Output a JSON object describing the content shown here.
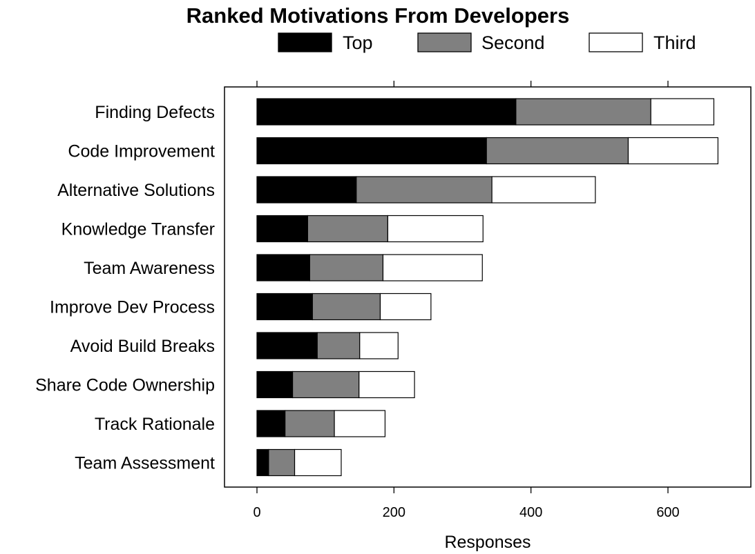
{
  "chart_data": {
    "type": "bar",
    "orientation": "horizontal",
    "stacked": true,
    "title": "Ranked Motivations From Developers",
    "xlabel": "Responses",
    "ylabel": "",
    "xlim": [
      -48,
      720
    ],
    "xticks": [
      "0",
      "200",
      "400",
      "600"
    ],
    "xtick_values": [
      0,
      200,
      400,
      600
    ],
    "grid": false,
    "legend_position": "top",
    "categories": [
      "Finding Defects",
      "Code Improvement",
      "Alternative Solutions",
      "Knowledge Transfer",
      "Team Awareness",
      "Improve Dev Process",
      "Avoid Build Breaks",
      "Share Code Ownership",
      "Track Rationale",
      "Team Assessment"
    ],
    "series": [
      {
        "name": "Top",
        "color": "#000000",
        "values": [
          378,
          335,
          145,
          74,
          77,
          81,
          88,
          52,
          41,
          17
        ]
      },
      {
        "name": "Second",
        "color": "#808080",
        "values": [
          197,
          207,
          198,
          117,
          107,
          99,
          62,
          97,
          72,
          38
        ]
      },
      {
        "name": "Third",
        "color": "#ffffff",
        "values": [
          92,
          131,
          151,
          139,
          145,
          74,
          56,
          81,
          74,
          68
        ]
      }
    ]
  }
}
